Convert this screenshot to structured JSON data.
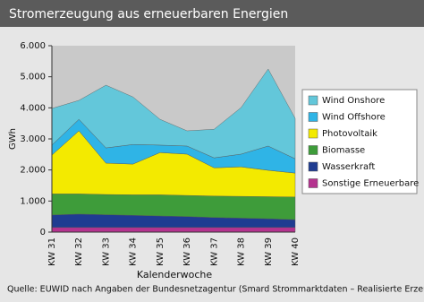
{
  "chart_data": {
    "type": "stacked-area",
    "title": "Stromerzeugung aus erneuerbaren Energien",
    "y_label": "GWh",
    "x_label": "Kalenderwoche",
    "source": "Quelle: EUWID nach Angaben der Bundesnetzagentur (Smard Strommarktdaten – Realisierte Erzeugung)",
    "categories": [
      "KW 31",
      "KW 32",
      "KW 33",
      "KW 34",
      "KW 35",
      "KW 36",
      "KW 37",
      "KW 38",
      "KW 39",
      "KW 40"
    ],
    "series": [
      {
        "name": "Sonstige Erneuerbare",
        "color": "#b5338f",
        "values": [
          150,
          150,
          150,
          150,
          150,
          150,
          150,
          150,
          150,
          150
        ]
      },
      {
        "name": "Wasserkraft",
        "color": "#1f3c91",
        "values": [
          400,
          430,
          410,
          390,
          370,
          350,
          320,
          300,
          280,
          250
        ]
      },
      {
        "name": "Biomasse",
        "color": "#3e9c3a",
        "values": [
          680,
          650,
          650,
          660,
          680,
          680,
          690,
          700,
          710,
          730
        ]
      },
      {
        "name": "Photovoltaik",
        "color": "#f3ea00",
        "values": [
          1250,
          2030,
          1010,
          990,
          1360,
          1330,
          910,
          950,
          850,
          770
        ]
      },
      {
        "name": "Wind Offshore",
        "color": "#2fb4e6",
        "values": [
          320,
          370,
          490,
          630,
          240,
          260,
          320,
          410,
          780,
          460
        ]
      },
      {
        "name": "Wind Onshore",
        "color": "#63c7da",
        "values": [
          1180,
          610,
          2020,
          1530,
          830,
          490,
          920,
          1500,
          2480,
          1300
        ]
      }
    ],
    "ylim": [
      0,
      6000
    ],
    "yticks": [
      0,
      {
        "value": 1000,
        "label": "1.000"
      },
      {
        "value": 2000,
        "label": "2.000"
      },
      {
        "value": 3000,
        "label": "3.000"
      },
      {
        "value": 4000,
        "label": "4.000"
      },
      {
        "value": 5000,
        "label": "5.000"
      },
      {
        "value": 6000,
        "label": "6.000"
      }
    ],
    "grid": false,
    "legend": "right"
  }
}
